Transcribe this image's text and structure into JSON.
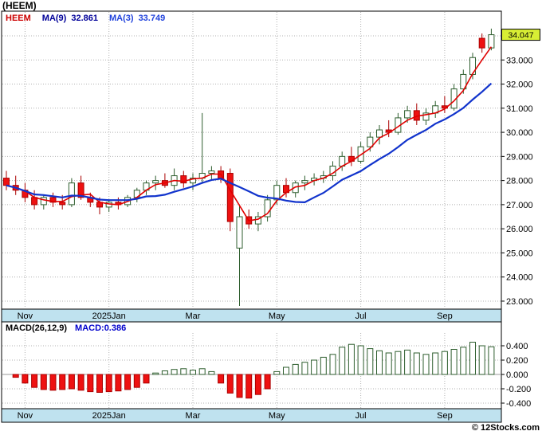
{
  "page": {
    "title": "(HEEM)",
    "copyright": "© 12Stocks.com"
  },
  "colors": {
    "strip_bg": "#bfe2ef",
    "panel_border": "#000000",
    "grid": "#b0b0b0",
    "zero_line": "#999999",
    "up_fill": "#ffffff",
    "up_stroke": "#2e5e2e",
    "down_fill": "#ee1111",
    "down_stroke": "#aa0000",
    "ma_fast": "#e00000",
    "ma_slow": "#1133cc",
    "macd_pos_fill": "#ffffff",
    "macd_pos_stroke": "#2e5e2e",
    "macd_neg_fill": "#ee1111",
    "macd_neg_stroke": "#aa0000",
    "badge_bg": "#d8ee34",
    "badge_border": "#000000",
    "series_name_color": "#cc0000",
    "ma9_text": "#000099",
    "ma3_text": "#2244dd",
    "macd_value_color": "#0000cc"
  },
  "chart_data": [
    {
      "type": "candlestick",
      "series_name": "HEEM",
      "ma9_label": "MA(9)",
      "ma9_value": "32.861",
      "ma3_label": "MA(3)",
      "ma3_value": "33.749",
      "ma_periods": {
        "fast": 3,
        "slow": 9
      },
      "last_price": 34.047,
      "last_price_label": "34.047",
      "ylim": [
        22.6,
        34.5
      ],
      "yticks": [
        34,
        33,
        32,
        31,
        30,
        29,
        28,
        27,
        26,
        25,
        24,
        23
      ],
      "ytick_labels": [
        "34.000",
        "33.000",
        "32.000",
        "31.000",
        "30.000",
        "29.000",
        "28.000",
        "27.000",
        "26.000",
        "25.000",
        "24.000",
        "23.000"
      ],
      "x_labels": [
        {
          "label": "Nov",
          "index": 2
        },
        {
          "label": "2025Jan",
          "index": 11
        },
        {
          "label": "Mar",
          "index": 20
        },
        {
          "label": "May",
          "index": 29
        },
        {
          "label": "Jul",
          "index": 38
        },
        {
          "label": "Sep",
          "index": 47
        }
      ],
      "candles_ohlc": [
        [
          28.1,
          28.4,
          27.6,
          27.8
        ],
        [
          27.8,
          28.2,
          27.4,
          27.6
        ],
        [
          27.6,
          27.9,
          27.1,
          27.3
        ],
        [
          27.3,
          27.6,
          26.8,
          27.0
        ],
        [
          27.0,
          27.4,
          26.8,
          27.3
        ],
        [
          27.3,
          27.5,
          26.9,
          27.1
        ],
        [
          27.1,
          27.4,
          26.8,
          27.0
        ],
        [
          27.0,
          28.1,
          26.9,
          27.9
        ],
        [
          27.9,
          28.2,
          27.2,
          27.3
        ],
        [
          27.3,
          27.5,
          26.9,
          27.1
        ],
        [
          27.1,
          27.3,
          26.6,
          26.9
        ],
        [
          26.9,
          27.2,
          26.7,
          27.1
        ],
        [
          27.1,
          27.3,
          26.8,
          27.0
        ],
        [
          27.0,
          27.4,
          26.9,
          27.3
        ],
        [
          27.3,
          27.7,
          27.1,
          27.6
        ],
        [
          27.6,
          28.0,
          27.4,
          27.9
        ],
        [
          27.9,
          28.2,
          27.6,
          28.0
        ],
        [
          28.0,
          28.3,
          27.7,
          27.8
        ],
        [
          27.8,
          28.5,
          27.6,
          28.2
        ],
        [
          28.2,
          28.4,
          27.7,
          27.9
        ],
        [
          27.9,
          28.3,
          27.6,
          28.1
        ],
        [
          28.1,
          30.8,
          27.9,
          28.3
        ],
        [
          28.3,
          28.6,
          28.0,
          28.4
        ],
        [
          28.4,
          28.6,
          27.9,
          28.1
        ],
        [
          28.3,
          28.5,
          25.9,
          26.3
        ],
        [
          25.2,
          27.0,
          22.8,
          26.5
        ],
        [
          26.5,
          26.8,
          26.0,
          26.2
        ],
        [
          26.2,
          26.7,
          25.9,
          26.5
        ],
        [
          26.5,
          27.4,
          26.3,
          27.2
        ],
        [
          27.2,
          28.0,
          27.0,
          27.8
        ],
        [
          27.8,
          28.1,
          27.3,
          27.5
        ],
        [
          27.5,
          28.0,
          27.3,
          27.9
        ],
        [
          27.9,
          28.2,
          27.6,
          28.0
        ],
        [
          28.0,
          28.3,
          27.8,
          28.1
        ],
        [
          28.1,
          28.4,
          27.9,
          28.2
        ],
        [
          28.2,
          28.8,
          28.0,
          28.6
        ],
        [
          28.6,
          29.2,
          28.4,
          29.0
        ],
        [
          29.0,
          29.4,
          28.6,
          28.8
        ],
        [
          28.8,
          29.6,
          28.7,
          29.4
        ],
        [
          29.4,
          30.0,
          29.2,
          29.8
        ],
        [
          29.8,
          30.3,
          29.5,
          30.1
        ],
        [
          30.1,
          30.5,
          29.8,
          30.0
        ],
        [
          30.0,
          30.8,
          29.9,
          30.6
        ],
        [
          30.6,
          31.1,
          30.4,
          30.9
        ],
        [
          30.9,
          31.2,
          30.3,
          30.5
        ],
        [
          30.5,
          31.0,
          30.3,
          30.8
        ],
        [
          30.8,
          31.3,
          30.6,
          31.1
        ],
        [
          31.1,
          31.5,
          30.8,
          31.0
        ],
        [
          31.0,
          32.0,
          30.9,
          31.8
        ],
        [
          31.8,
          32.6,
          31.6,
          32.4
        ],
        [
          32.4,
          33.3,
          32.2,
          33.1
        ],
        [
          33.9,
          34.1,
          33.3,
          33.5
        ],
        [
          33.5,
          34.3,
          33.4,
          34.047
        ]
      ]
    },
    {
      "type": "bar",
      "label": "MACD(26,12,9)",
      "value_label": "MACD:0.386",
      "last_value": 0.386,
      "yticks": [
        0.4,
        0.2,
        0,
        -0.2,
        -0.4
      ],
      "ytick_labels": [
        "0.400",
        "0.200",
        "0.000",
        "-0.200",
        "-0.400"
      ],
      "x_labels": [
        {
          "label": "Nov",
          "index": 2
        },
        {
          "label": "2025Jan",
          "index": 11
        },
        {
          "label": "Mar",
          "index": 20
        },
        {
          "label": "May",
          "index": 29
        },
        {
          "label": "Jul",
          "index": 38
        },
        {
          "label": "Sep",
          "index": 47
        }
      ],
      "values": [
        0,
        -0.04,
        -0.12,
        -0.18,
        -0.21,
        -0.22,
        -0.21,
        -0.2,
        -0.22,
        -0.24,
        -0.25,
        -0.24,
        -0.23,
        -0.21,
        -0.18,
        -0.12,
        0.02,
        0.05,
        0.07,
        0.08,
        0.06,
        0.08,
        0.04,
        -0.12,
        -0.26,
        -0.32,
        -0.33,
        -0.28,
        -0.2,
        0.04,
        0.1,
        0.14,
        0.17,
        0.2,
        0.24,
        0.28,
        0.38,
        0.42,
        0.4,
        0.36,
        0.33,
        0.3,
        0.32,
        0.34,
        0.3,
        0.28,
        0.3,
        0.32,
        0.35,
        0.38,
        0.45,
        0.4,
        0.386
      ]
    }
  ]
}
